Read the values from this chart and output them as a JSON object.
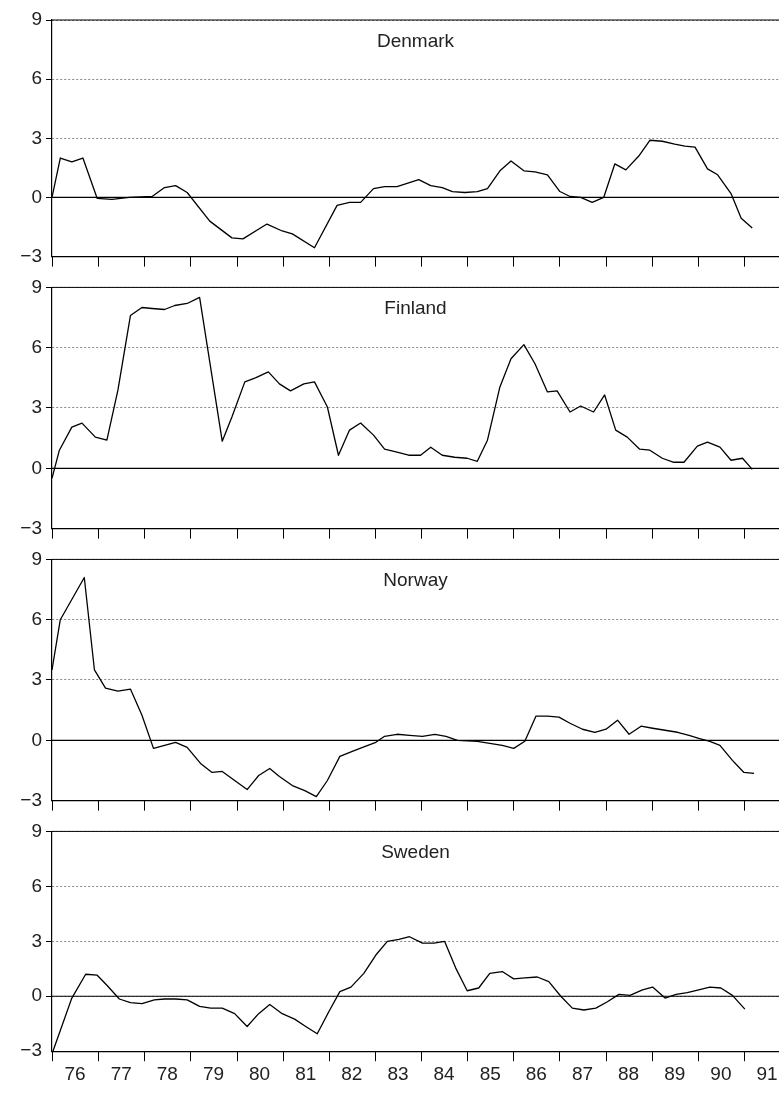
{
  "chart_data": [
    {
      "type": "line",
      "title": "Denmark",
      "color": "#000000",
      "grid": "y",
      "tick_labels": "y",
      "x": [
        76.0,
        76.18,
        76.43,
        76.67,
        76.98,
        77.3,
        77.68,
        78.17,
        78.44,
        78.68,
        78.93,
        79.42,
        79.9,
        80.14,
        80.66,
        80.99,
        81.21,
        81.69,
        82.18,
        82.45,
        82.69,
        82.97,
        83.21,
        83.48,
        83.95,
        84.21,
        84.46,
        84.68,
        84.95,
        85.22,
        85.44,
        85.71,
        85.95,
        86.23,
        86.47,
        86.74,
        87.01,
        87.23,
        87.46,
        87.71,
        87.96,
        88.2,
        88.44,
        88.72,
        88.96,
        89.23,
        89.5,
        89.72,
        89.94,
        90.21,
        90.43,
        90.72,
        90.94,
        91.18
      ],
      "values": [
        0,
        2.0,
        1.8,
        2.0,
        -0.05,
        -0.1,
        0,
        0.05,
        0.5,
        0.6,
        0.25,
        -1.2,
        -2.05,
        -2.1,
        -1.35,
        -1.7,
        -1.85,
        -2.55,
        -0.4,
        -0.25,
        -0.25,
        0.45,
        0.55,
        0.55,
        0.9,
        0.6,
        0.5,
        0.3,
        0.25,
        0.3,
        0.45,
        1.35,
        1.85,
        1.35,
        1.3,
        1.15,
        0.3,
        0.05,
        0,
        -0.25,
        0,
        1.7,
        1.4,
        2.1,
        2.9,
        2.85,
        2.7,
        2.6,
        2.55,
        1.45,
        1.15,
        0.2,
        -1.05,
        -1.55
      ],
      "xlim": [
        76,
        91.76
      ],
      "xticks": [
        76,
        77,
        78,
        79,
        80,
        81,
        82,
        83,
        84,
        85,
        86,
        87,
        88,
        89,
        90,
        91
      ],
      "ylim": [
        -3,
        9
      ],
      "yticks": [
        -3,
        0,
        3,
        6,
        9
      ],
      "ref_lines": [
        {
          "axis": "y",
          "value": 0
        }
      ]
    },
    {
      "type": "line",
      "title": "Finland",
      "color": "#000000",
      "grid": "y",
      "tick_labels": "y",
      "x": [
        76.0,
        76.16,
        76.43,
        76.65,
        76.94,
        77.19,
        77.43,
        77.7,
        77.95,
        78.17,
        78.44,
        78.66,
        78.93,
        79.2,
        79.69,
        79.9,
        80.18,
        80.41,
        80.69,
        80.93,
        81.17,
        81.46,
        81.69,
        81.97,
        82.21,
        82.45,
        82.69,
        82.97,
        83.21,
        83.48,
        83.73,
        83.99,
        84.21,
        84.46,
        84.73,
        85.0,
        85.22,
        85.44,
        85.71,
        85.95,
        86.23,
        86.47,
        86.74,
        86.95,
        87.23,
        87.46,
        87.74,
        87.98,
        88.22,
        88.47,
        88.74,
        88.96,
        89.23,
        89.48,
        89.7,
        89.99,
        90.21,
        90.48,
        90.72,
        90.97,
        91.18
      ],
      "values": [
        -0.5,
        0.9,
        2.05,
        2.25,
        1.55,
        1.4,
        3.9,
        7.6,
        8.0,
        7.95,
        7.9,
        8.1,
        8.2,
        8.5,
        1.35,
        2.55,
        4.3,
        4.5,
        4.8,
        4.2,
        3.85,
        4.2,
        4.3,
        3.05,
        0.65,
        1.9,
        2.25,
        1.65,
        0.95,
        0.8,
        0.65,
        0.65,
        1.05,
        0.65,
        0.55,
        0.5,
        0.35,
        1.4,
        4.05,
        5.45,
        6.15,
        5.2,
        3.8,
        3.85,
        2.8,
        3.1,
        2.8,
        3.65,
        1.9,
        1.55,
        0.95,
        0.9,
        0.5,
        0.3,
        0.3,
        1.1,
        1.3,
        1.05,
        0.4,
        0.5,
        -0.05
      ],
      "xlim": [
        76,
        91.76
      ],
      "xticks": [
        76,
        77,
        78,
        79,
        80,
        81,
        82,
        83,
        84,
        85,
        86,
        87,
        88,
        89,
        90,
        91
      ],
      "ylim": [
        -3,
        9
      ],
      "yticks": [
        -3,
        0,
        3,
        6,
        9
      ],
      "ref_lines": [
        {
          "axis": "y",
          "value": 0
        }
      ]
    },
    {
      "type": "line",
      "title": "Norway",
      "color": "#000000",
      "grid": "y",
      "tick_labels": "y",
      "x": [
        76.0,
        76.18,
        76.7,
        76.92,
        77.16,
        77.43,
        77.7,
        77.95,
        78.2,
        78.68,
        78.93,
        79.22,
        79.47,
        79.69,
        79.96,
        80.23,
        80.48,
        80.72,
        80.93,
        81.21,
        81.48,
        81.73,
        81.97,
        82.24,
        82.51,
        82.79,
        83.02,
        83.21,
        83.48,
        83.75,
        84.03,
        84.3,
        84.54,
        84.79,
        85.22,
        85.49,
        85.76,
        86.01,
        86.25,
        86.49,
        86.74,
        86.99,
        87.23,
        87.5,
        87.77,
        88.01,
        88.26,
        88.51,
        88.77,
        89.02,
        89.29,
        89.56,
        89.81,
        90.02,
        90.26,
        90.48,
        90.75,
        91.0,
        91.22
      ],
      "values": [
        3.5,
        6.0,
        8.1,
        3.5,
        2.6,
        2.45,
        2.55,
        1.25,
        -0.4,
        -0.1,
        -0.35,
        -1.15,
        -1.6,
        -1.55,
        -2.0,
        -2.45,
        -1.75,
        -1.4,
        -1.8,
        -2.25,
        -2.5,
        -2.8,
        -2.0,
        -0.8,
        -0.55,
        -0.3,
        -0.1,
        0.2,
        0.3,
        0.25,
        0.2,
        0.3,
        0.2,
        0,
        -0.05,
        -0.15,
        -0.25,
        -0.4,
        -0.05,
        1.2,
        1.2,
        1.15,
        0.85,
        0.55,
        0.4,
        0.55,
        1.0,
        0.3,
        0.7,
        0.6,
        0.5,
        0.4,
        0.25,
        0.1,
        -0.05,
        -0.25,
        -1.0,
        -1.6,
        -1.65
      ],
      "xlim": [
        76,
        91.76
      ],
      "xticks": [
        76,
        77,
        78,
        79,
        80,
        81,
        82,
        83,
        84,
        85,
        86,
        87,
        88,
        89,
        90,
        91
      ],
      "ylim": [
        -3,
        9
      ],
      "yticks": [
        -3,
        0,
        3,
        6,
        9
      ],
      "ref_lines": [
        {
          "axis": "y",
          "value": 0
        }
      ]
    },
    {
      "type": "line",
      "title": "Sweden",
      "color": "#000000",
      "grid": "y",
      "x": [
        76.02,
        76.43,
        76.73,
        76.98,
        77.19,
        77.46,
        77.7,
        77.95,
        78.22,
        78.44,
        78.68,
        78.93,
        79.2,
        79.44,
        79.69,
        79.96,
        80.23,
        80.48,
        80.72,
        80.99,
        81.26,
        81.5,
        81.75,
        82.0,
        82.24,
        82.48,
        82.76,
        83.02,
        83.27,
        83.52,
        83.75,
        84.03,
        84.28,
        84.51,
        84.75,
        85.0,
        85.25,
        85.49,
        85.76,
        86.01,
        86.25,
        86.52,
        86.77,
        87.03,
        87.28,
        87.53,
        87.79,
        88.04,
        88.29,
        88.53,
        88.8,
        89.02,
        89.29,
        89.53,
        89.77,
        90.02,
        90.26,
        90.5,
        90.75,
        91.02
      ],
      "values": [
        -3.0,
        -0.1,
        1.2,
        1.15,
        0.6,
        -0.15,
        -0.35,
        -0.4,
        -0.2,
        -0.15,
        -0.15,
        -0.2,
        -0.55,
        -0.65,
        -0.65,
        -0.95,
        -1.65,
        -0.95,
        -0.45,
        -0.95,
        -1.25,
        -1.65,
        -2.05,
        -0.85,
        0.25,
        0.5,
        1.25,
        2.25,
        3.0,
        3.1,
        3.25,
        2.9,
        2.9,
        3.0,
        1.55,
        0.3,
        0.45,
        1.25,
        1.35,
        0.95,
        1.0,
        1.05,
        0.8,
        0,
        -0.65,
        -0.75,
        -0.65,
        -0.3,
        0.1,
        0.05,
        0.35,
        0.5,
        -0.1,
        0.1,
        0.2,
        0.35,
        0.5,
        0.45,
        0.05,
        -0.7
      ],
      "xlim": [
        76,
        91.76
      ],
      "xticks": [
        {
          "value": 76,
          "label": null
        },
        {
          "value": 76.5,
          "label": "76"
        },
        {
          "value": 77,
          "label": null
        },
        {
          "value": 77.5,
          "label": "77"
        },
        {
          "value": 78,
          "label": null
        },
        {
          "value": 78.5,
          "label": "78"
        },
        {
          "value": 79,
          "label": null
        },
        {
          "value": 79.5,
          "label": "79"
        },
        {
          "value": 80,
          "label": null
        },
        {
          "value": 80.5,
          "label": "80"
        },
        {
          "value": 81,
          "label": null
        },
        {
          "value": 81.5,
          "label": "81"
        },
        {
          "value": 82,
          "label": null
        },
        {
          "value": 82.5,
          "label": "82"
        },
        {
          "value": 83,
          "label": null
        },
        {
          "value": 83.5,
          "label": "83"
        },
        {
          "value": 84,
          "label": null
        },
        {
          "value": 84.5,
          "label": "84"
        },
        {
          "value": 85,
          "label": null
        },
        {
          "value": 85.5,
          "label": "85"
        },
        {
          "value": 86,
          "label": null
        },
        {
          "value": 86.5,
          "label": "86"
        },
        {
          "value": 87,
          "label": null
        },
        {
          "value": 87.5,
          "label": "87"
        },
        {
          "value": 88,
          "label": null
        },
        {
          "value": 88.5,
          "label": "88"
        },
        {
          "value": 89,
          "label": null
        },
        {
          "value": 89.5,
          "label": "89"
        },
        {
          "value": 90,
          "label": null
        },
        {
          "value": 90.5,
          "label": "90"
        },
        {
          "value": 91,
          "label": null
        },
        {
          "value": 91.5,
          "label": "91"
        }
      ],
      "ylim": [
        -3,
        9
      ],
      "yticks": [
        -3,
        0,
        3,
        6,
        9
      ],
      "ref_lines": [
        {
          "axis": "y",
          "value": 0
        }
      ]
    }
  ]
}
